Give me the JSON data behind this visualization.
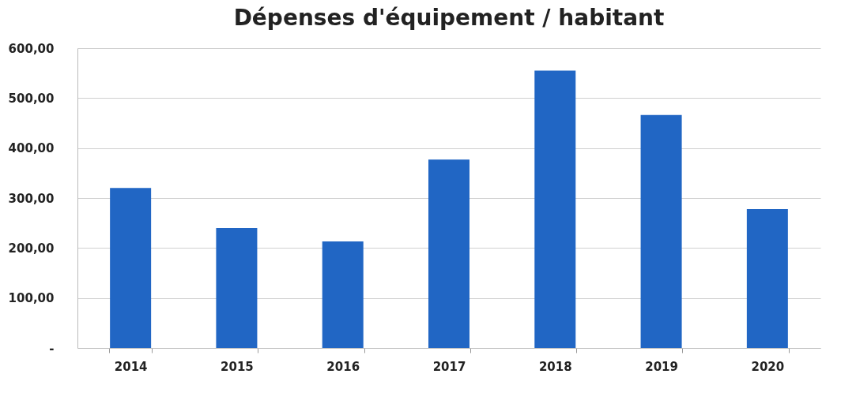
{
  "chart_data": {
    "type": "bar",
    "title": "Dépenses d'équipement / habitant",
    "categories": [
      "2014",
      "2015",
      "2016",
      "2017",
      "2018",
      "2019",
      "2020"
    ],
    "values": [
      320,
      240,
      213,
      377,
      555,
      466,
      278
    ],
    "color": "#2166c4",
    "ylim": [
      0,
      600
    ],
    "yticks": [
      {
        "value": 0,
        "label": "-"
      },
      {
        "value": 100,
        "label": "100,00"
      },
      {
        "value": 200,
        "label": "200,00"
      },
      {
        "value": 300,
        "label": "300,00"
      },
      {
        "value": 400,
        "label": "400,00"
      },
      {
        "value": 500,
        "label": "500,00"
      },
      {
        "value": 600,
        "label": "600,00"
      }
    ],
    "grid": "y"
  }
}
